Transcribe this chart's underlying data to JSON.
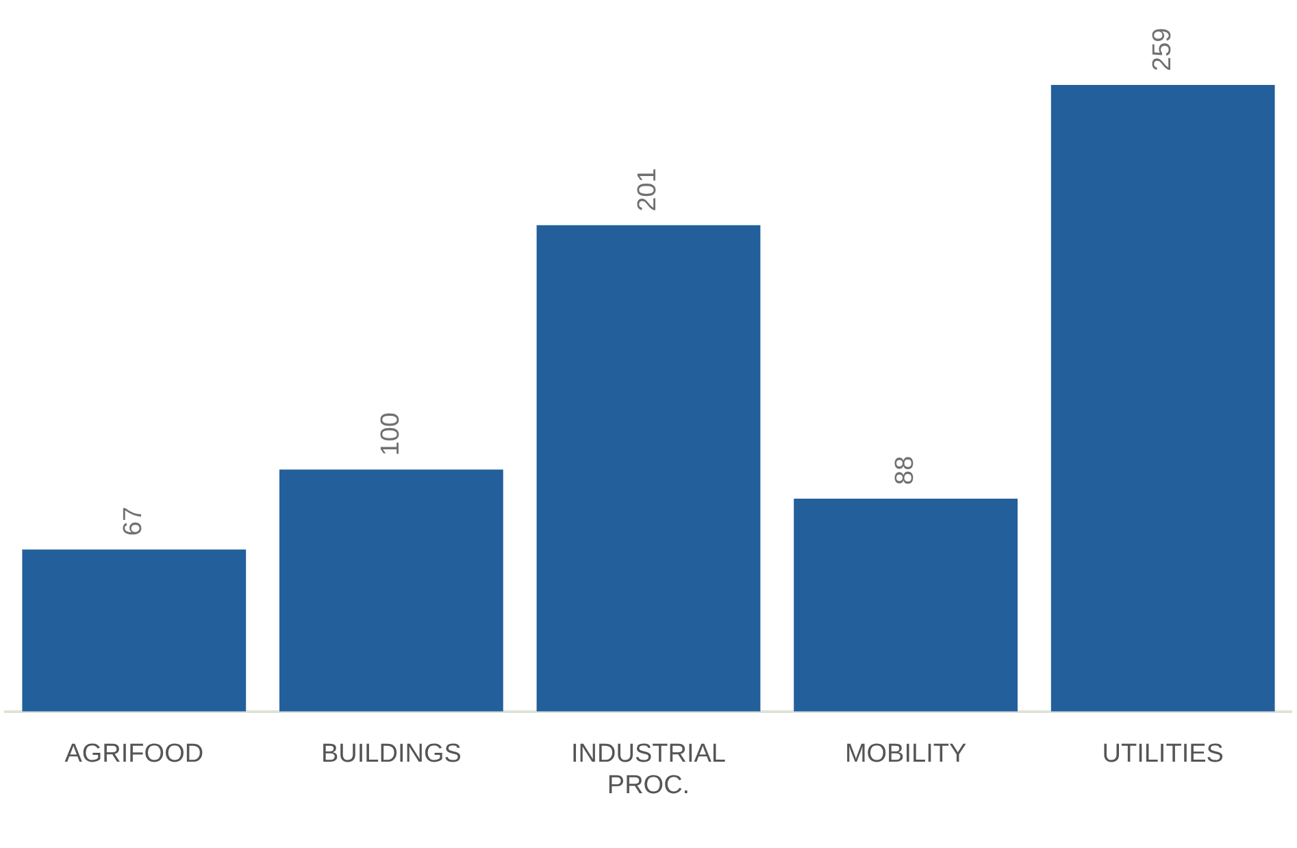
{
  "chart_data": {
    "type": "bar",
    "categories": [
      "AGRIFOOD",
      "BUILDINGS",
      "INDUSTRIAL PROC.",
      "MOBILITY",
      "UTILITIES"
    ],
    "values": [
      67,
      100,
      201,
      88,
      259
    ],
    "color": "#235f9b",
    "data_labels": true,
    "grid": false,
    "legend": false
  }
}
